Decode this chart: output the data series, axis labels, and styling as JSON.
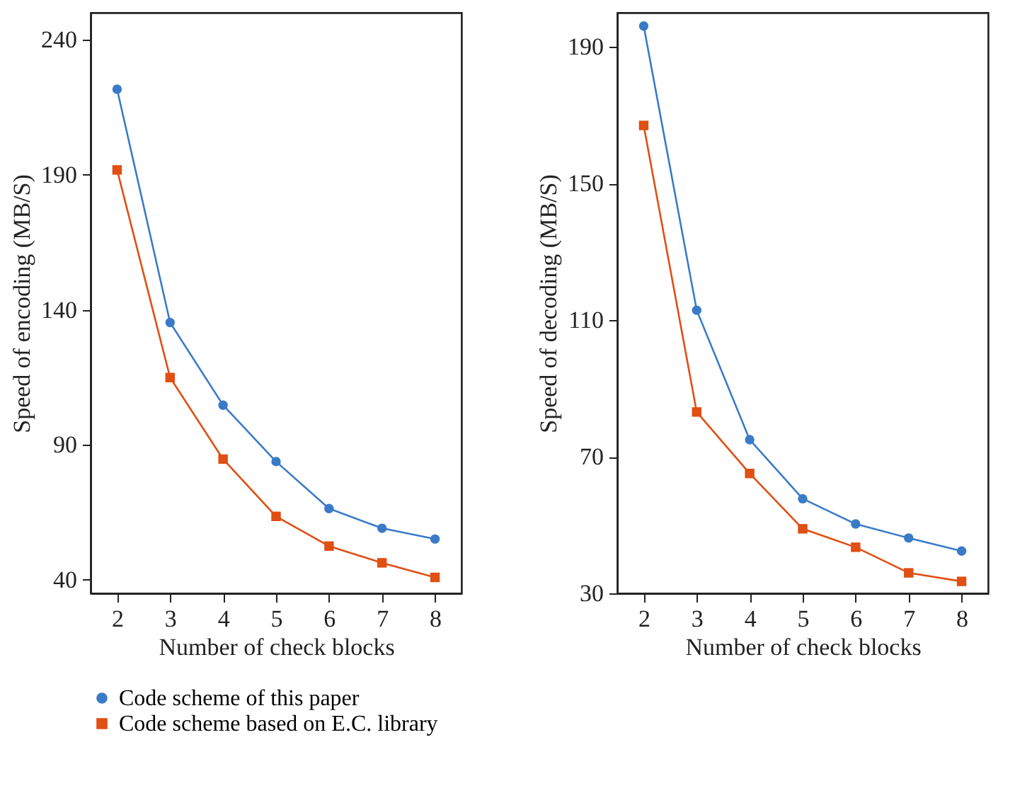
{
  "chart_data": [
    {
      "type": "line",
      "xlabel": "Number of check blocks",
      "ylabel": "Speed of encoding (MB/S)",
      "x": [
        2,
        3,
        4,
        5,
        6,
        7,
        8
      ],
      "xlim": [
        1.5,
        8.5
      ],
      "xticks": [
        2,
        3,
        4,
        5,
        6,
        7,
        8
      ],
      "ylim": [
        35,
        250
      ],
      "yticks": [
        40,
        90,
        140,
        190,
        240
      ],
      "grid": false,
      "legend": "bottom left",
      "line_style": "solid",
      "series": [
        {
          "name": "Code scheme of this paper",
          "color": "#3a7bc8",
          "marker": "circle",
          "values": [
            221.7,
            135.3,
            104.7,
            83.8,
            66.4,
            59.1,
            55.1
          ]
        },
        {
          "name": "Code scheme based on E.C. library",
          "color": "#e04f13",
          "marker": "square",
          "values": [
            191.8,
            114.9,
            84.7,
            63.5,
            52.5,
            46.3,
            40.9
          ]
        }
      ]
    },
    {
      "type": "line",
      "xlabel": "Number of check blocks",
      "ylabel": "Speed of decoding (MB/S)",
      "x": [
        2,
        3,
        4,
        5,
        6,
        7,
        8
      ],
      "xlim": [
        1.5,
        8.5
      ],
      "xticks": [
        2,
        3,
        4,
        5,
        6,
        7,
        8
      ],
      "ylim": [
        30,
        200
      ],
      "yticks": [
        30,
        70,
        110,
        150,
        190
      ],
      "grid": false,
      "legend": false,
      "line_style": "solid",
      "series": [
        {
          "color": "#3a7bc8",
          "marker": "circle",
          "values": [
            196.1,
            112.9,
            75.0,
            57.7,
            50.3,
            46.2,
            42.4
          ]
        },
        {
          "color": "#e04f13",
          "marker": "square",
          "values": [
            167.0,
            83.1,
            65.1,
            48.9,
            43.5,
            36.0,
            33.5
          ]
        }
      ]
    }
  ]
}
